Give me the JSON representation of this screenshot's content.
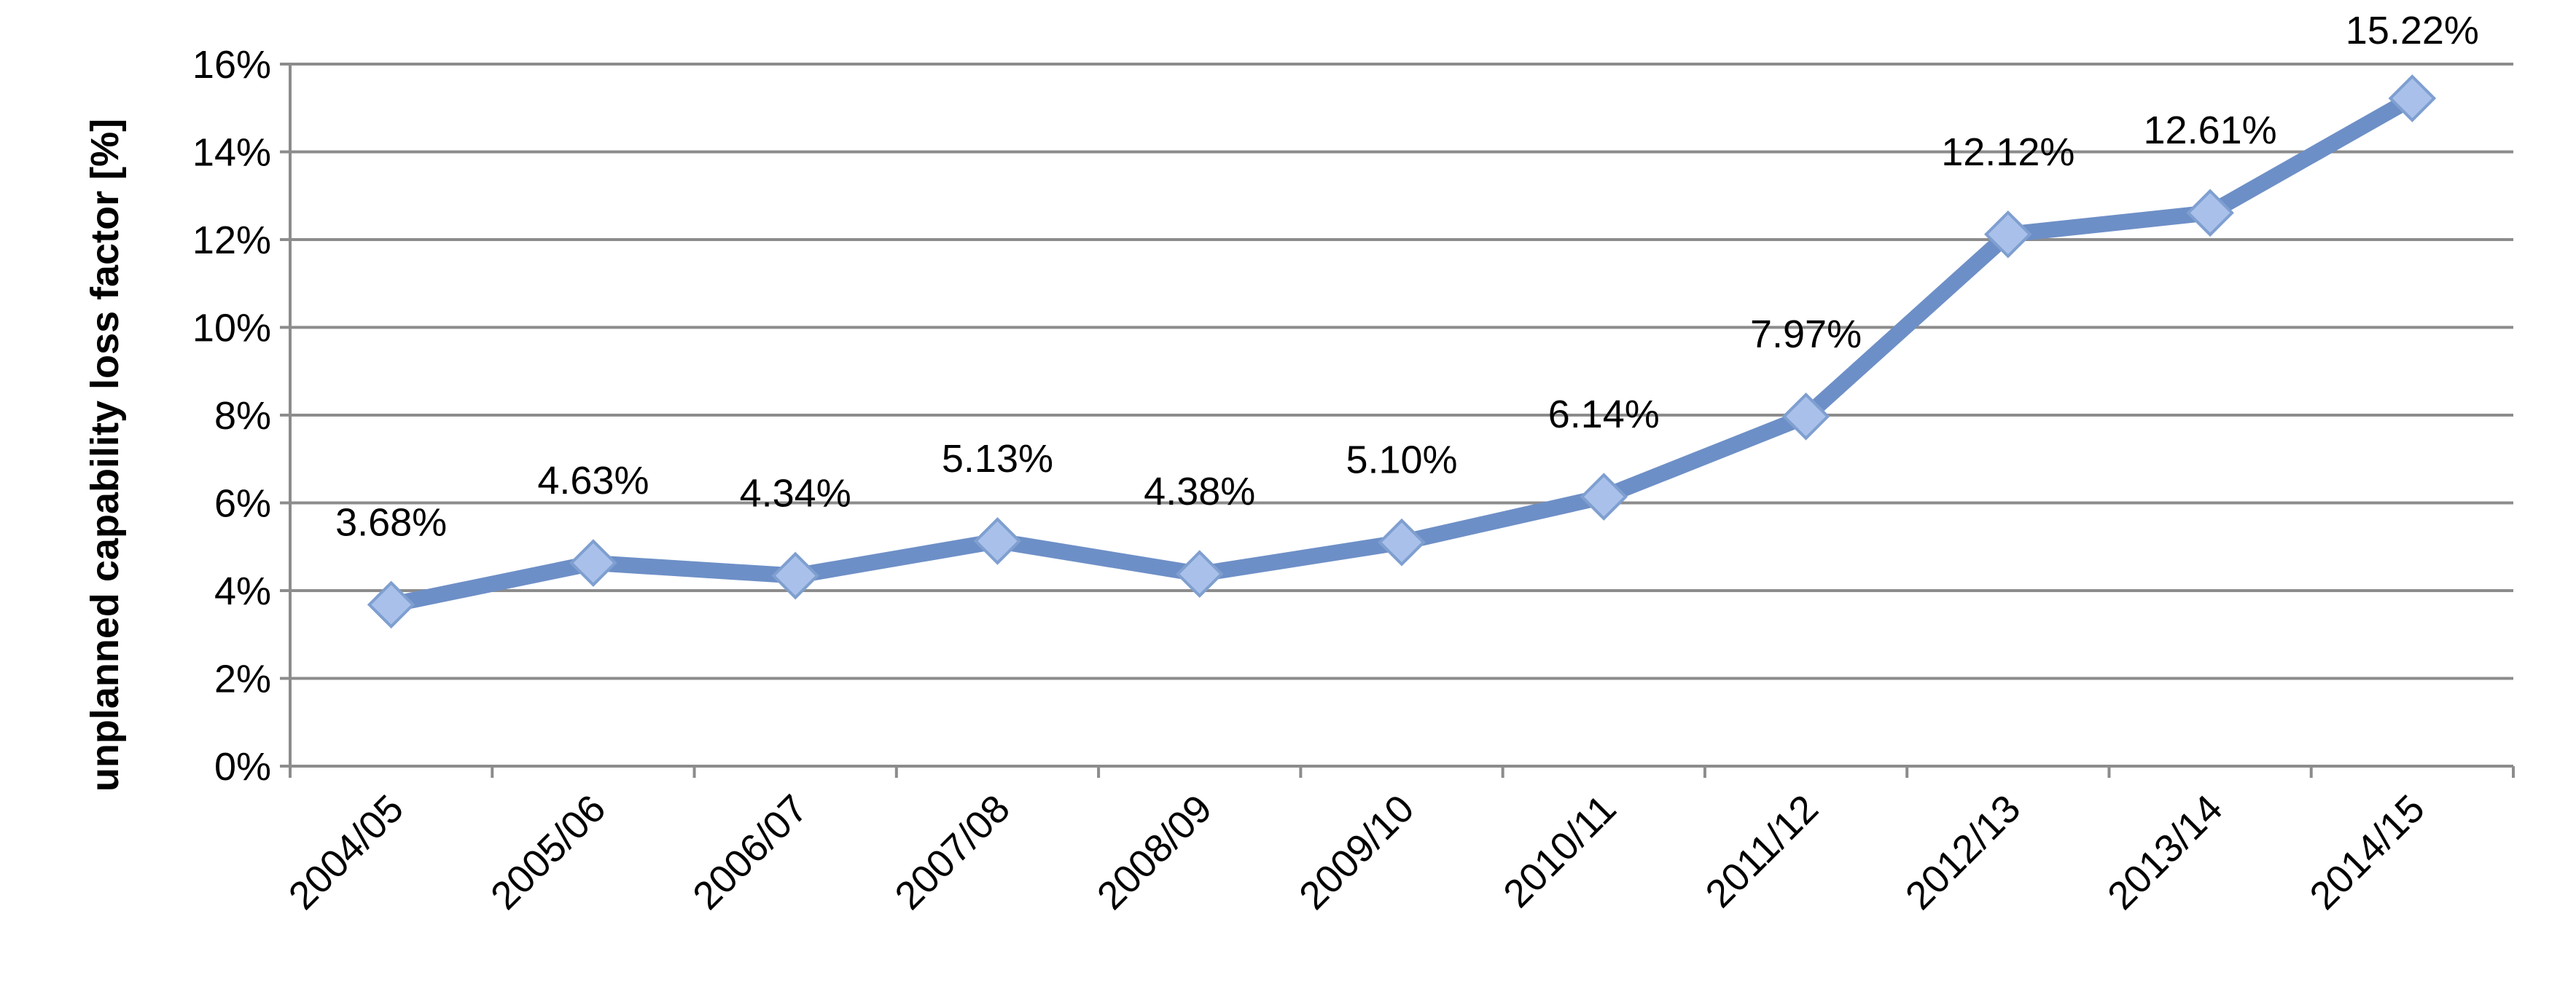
{
  "chart_data": {
    "type": "line",
    "ylabel": "unplanned capability loss factor [%]",
    "xlabel": "",
    "categories": [
      "2004/05",
      "2005/06",
      "2006/07",
      "2007/08",
      "2008/09",
      "2009/10",
      "2010/11",
      "2011/12",
      "2012/13",
      "2013/14",
      "2014/15"
    ],
    "series": [
      {
        "values": [
          3.68,
          4.63,
          4.34,
          5.13,
          4.38,
          5.1,
          6.14,
          7.97,
          12.12,
          12.61,
          15.22
        ],
        "labels": [
          "3.68%",
          "4.63%",
          "4.34%",
          "5.13%",
          "4.38%",
          "5.10%",
          "6.14%",
          "7.97%",
          "12.12%",
          "12.61%",
          "15.22%"
        ],
        "color": "#6d8fc7",
        "marker": "diamond"
      }
    ],
    "ylim": [
      0,
      16
    ],
    "yticks": [
      0,
      2,
      4,
      6,
      8,
      10,
      12,
      14,
      16
    ],
    "ytick_labels": [
      "0%",
      "2%",
      "4%",
      "6%",
      "8%",
      "10%",
      "12%",
      "14%",
      "16%"
    ],
    "grid": true,
    "legend": "none"
  }
}
